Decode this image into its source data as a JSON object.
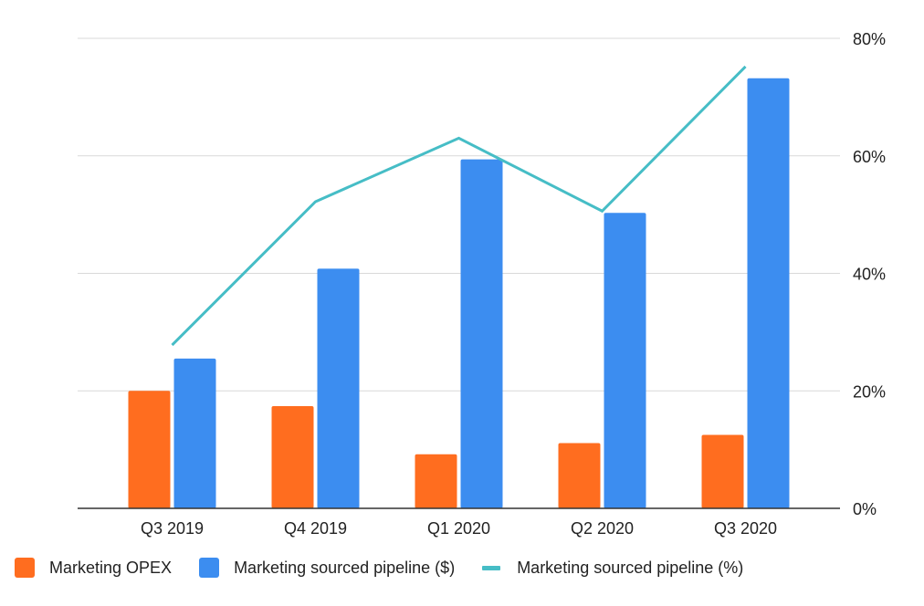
{
  "chart_data": {
    "type": "bar",
    "categories": [
      "Q3 2019",
      "Q4 2019",
      "Q1 2020",
      "Q2 2020",
      "Q3 2020"
    ],
    "series": [
      {
        "name": "Marketing OPEX",
        "kind": "bar",
        "color": "#ff6d1f",
        "values": [
          20,
          17.4,
          9.2,
          11.1,
          12.5
        ]
      },
      {
        "name": "Marketing sourced pipeline ($)",
        "kind": "bar",
        "color": "#3c8df0",
        "values": [
          25.5,
          40.8,
          59.4,
          50.3,
          73.2
        ]
      },
      {
        "name": "Marketing sourced pipeline (%)",
        "kind": "line",
        "color": "#46bdc6",
        "values": [
          27.8,
          52.2,
          63,
          50.6,
          75.2
        ]
      }
    ],
    "y_axis": {
      "side": "right",
      "ticks": [
        "0%",
        "20%",
        "40%",
        "60%",
        "80%"
      ],
      "tick_values": [
        0,
        20,
        40,
        60,
        80
      ],
      "ylim": [
        0,
        80
      ]
    },
    "grid": true,
    "legend_position": "bottom-left",
    "title": "",
    "xlabel": "",
    "ylabel": ""
  }
}
